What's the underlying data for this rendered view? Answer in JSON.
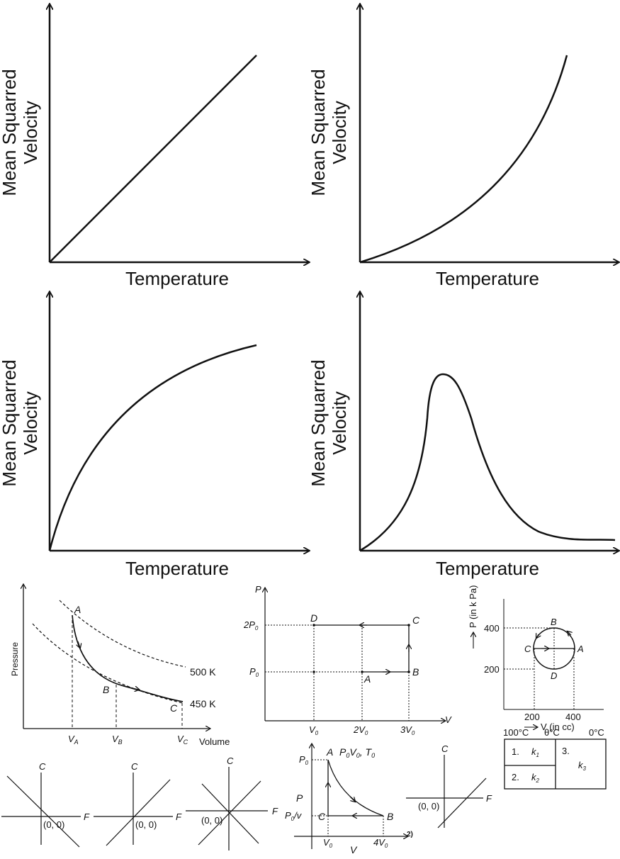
{
  "graphs": [
    {
      "ylabel_line1": "Mean Squarred",
      "ylabel_line2": "Velocity",
      "xlabel": "Temperature"
    },
    {
      "ylabel_line1": "Mean Squarred",
      "ylabel_line2": "Velocity",
      "xlabel": "Temperature"
    },
    {
      "ylabel_line1": "Mean Squarred",
      "ylabel_line2": "Velocity",
      "xlabel": "Temperature"
    },
    {
      "ylabel_line1": "Mean Squarred",
      "ylabel_line2": "Velocity",
      "xlabel": "Temperature"
    }
  ],
  "isotherm": {
    "ylabel": "Pressure",
    "xlabel": "Volume",
    "iso_high": "500 K",
    "iso_low": "450 K",
    "pt_a": "A",
    "pt_b": "B",
    "pt_c": "C",
    "va": "V",
    "va_sub": "A",
    "vb": "V",
    "vb_sub": "B",
    "vc": "V",
    "vc_sub": "C"
  },
  "pv_cycle": {
    "p_axis": "P",
    "v_axis": "V",
    "two_p0": "2P",
    "p0": "P",
    "sub0": "0",
    "v0": "V",
    "two_v0": "2V",
    "three_v0": "3V",
    "pt_a": "A",
    "pt_b": "B",
    "pt_c": "C",
    "pt_d": "D"
  },
  "circle_cycle": {
    "p_axis": "P (in k Pa)",
    "v_axis": "V (in cc)",
    "y400": "400",
    "y200": "200",
    "x200": "200",
    "x400": "400",
    "pt_a": "A",
    "pt_b": "B",
    "pt_c": "C",
    "pt_d": "D"
  },
  "cf_graphs": {
    "c": "C",
    "f": "F",
    "origin": "(0, 0)"
  },
  "temp_table": {
    "t100": "100°C",
    "ttheta": "θ°C",
    "t0": "0°C",
    "n1": "1.",
    "k1": "k",
    "s1": "1",
    "n2": "2.",
    "k2": "k",
    "s2": "2",
    "n3": "3.",
    "k3": "k",
    "s3": "3"
  },
  "abc_cycle": {
    "p0": "P",
    "sub0": "0",
    "pt_a": "A",
    "state_a": "P",
    "state_a2": "V",
    "state_a3": ", T",
    "p_label": "P",
    "p0v": "P",
    "p0v_rest": "/v",
    "pt_c": "C",
    "pt_b": "B",
    "v0": "V",
    "four_v0": "4V",
    "v_axis": "V"
  },
  "fragment": "2)"
}
